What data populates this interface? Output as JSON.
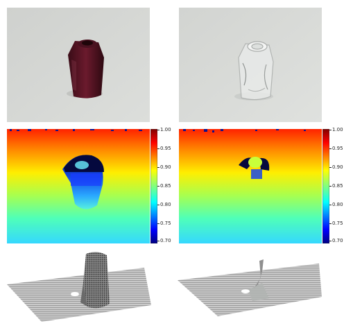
{
  "figure": {
    "rows": [
      {
        "row": "rgb-images",
        "panels": [
          {
            "name": "rgb-filled-bottle",
            "object": "filled-bottle-icon",
            "background": "#d4d6d3",
            "object_color": "#5a1423"
          },
          {
            "name": "rgb-transparent-bottle",
            "object": "glass-bottle-icon",
            "background": "#d6d8d5",
            "object_color": "#eef0ef"
          }
        ]
      },
      {
        "row": "depth-maps",
        "colormap": "jet",
        "panels": [
          {
            "name": "depth-filled-bottle"
          },
          {
            "name": "depth-transparent-bottle"
          }
        ]
      },
      {
        "row": "point-clouds",
        "panels": [
          {
            "name": "pointcloud-filled-bottle",
            "object": "dense-bottle-points",
            "surface_color": "#b8b8b8"
          },
          {
            "name": "pointcloud-transparent-bottle",
            "object": "sparse-bottle-points",
            "surface_color": "#bdbdbd"
          }
        ]
      }
    ],
    "colorbar": {
      "ticks": [
        "1.00",
        "0.95",
        "0.90",
        "0.85",
        "0.80",
        "0.75",
        "0.70"
      ],
      "range": [
        0.695,
        1.0
      ]
    }
  }
}
